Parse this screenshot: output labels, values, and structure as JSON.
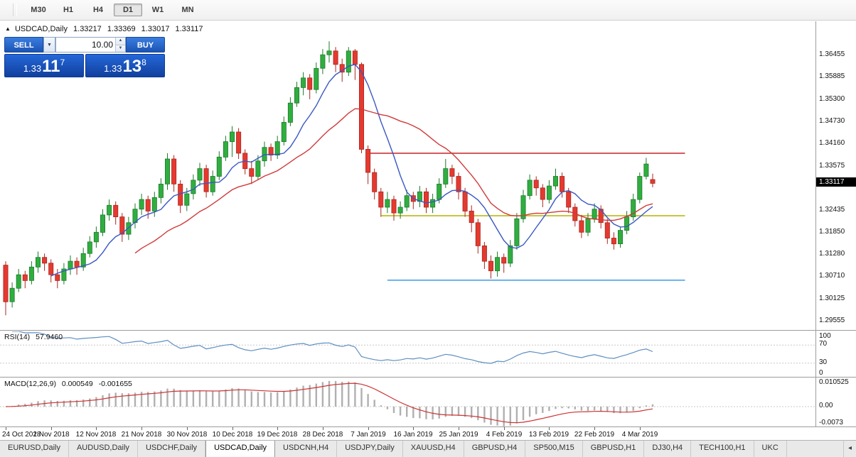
{
  "icons": {
    "collapse": "▲",
    "chevron_down": "▼",
    "spin_up": "▲",
    "spin_down": "▼",
    "tab_scroll_left": "◂"
  },
  "toolbar": {
    "timeframes": [
      {
        "label": "M30",
        "active": false
      },
      {
        "label": "H1",
        "active": false
      },
      {
        "label": "H4",
        "active": false
      },
      {
        "label": "D1",
        "active": true
      },
      {
        "label": "W1",
        "active": false
      },
      {
        "label": "MN",
        "active": false
      }
    ]
  },
  "header": {
    "title": "USDCAD,Daily",
    "open": "1.33217",
    "high": "1.33369",
    "low": "1.33017",
    "close": "1.33117"
  },
  "one_click": {
    "sell_label": "SELL",
    "buy_label": "BUY",
    "volume": "10.00",
    "sell_price": {
      "base": "1.33",
      "pips": "11",
      "pt": "7"
    },
    "buy_price": {
      "base": "1.33",
      "pips": "13",
      "pt": "8"
    }
  },
  "price_scale": {
    "labels": [
      "1.36455",
      "1.35885",
      "1.35300",
      "1.34730",
      "1.34160",
      "1.33575",
      "1.32435",
      "1.31850",
      "1.31280",
      "1.30710",
      "1.30125",
      "1.29555"
    ],
    "badge": "1.33117"
  },
  "rsi": {
    "name": "RSI(14)",
    "value": "57.9460",
    "scale": [
      "100",
      "70",
      "30",
      "0"
    ],
    "levels": [
      70,
      30
    ]
  },
  "macd": {
    "name": "MACD(12,26,9)",
    "value": "0.000549",
    "signal_value": "-0.001655",
    "scale": [
      "0.010525",
      "0.00",
      "-0.0073"
    ]
  },
  "x_axis": {
    "dates": [
      "24 Oct 2018",
      "2 Nov 2018",
      "12 Nov 2018",
      "21 Nov 2018",
      "30 Nov 2018",
      "10 Dec 2018",
      "19 Dec 2018",
      "28 Dec 2018",
      "7 Jan 2019",
      "16 Jan 2019",
      "25 Jan 2019",
      "4 Feb 2019",
      "13 Feb 2019",
      "22 Feb 2019",
      "4 Mar 2019"
    ]
  },
  "tabs": {
    "items": [
      {
        "label": "EURUSD,Daily",
        "active": false
      },
      {
        "label": "AUDUSD,Daily",
        "active": false
      },
      {
        "label": "USDCHF,Daily",
        "active": false
      },
      {
        "label": "USDCAD,Daily",
        "active": true
      },
      {
        "label": "USDCNH,H4",
        "active": false
      },
      {
        "label": "USDJPY,Daily",
        "active": false
      },
      {
        "label": "XAUUSD,H4",
        "active": false
      },
      {
        "label": "GBPUSD,H4",
        "active": false
      },
      {
        "label": "SP500,M15",
        "active": false
      },
      {
        "label": "GBPUSD,H1",
        "active": false
      },
      {
        "label": "DJ30,H4",
        "active": false
      },
      {
        "label": "TECH100,H1",
        "active": false
      },
      {
        "label": "UKC",
        "active": false
      }
    ]
  },
  "colors": {
    "bull": "#2fae3f",
    "bull_edge": "#1d7a2a",
    "bear": "#e5392f",
    "bear_edge": "#a8271f",
    "ma_fast": "#3a57c4",
    "ma_slow": "#d03a3a",
    "rsi": "#5e8fc0",
    "level_dash": "#c8c8c8",
    "macd_hist": "#b0b0b0",
    "macd_signal": "#cc3333",
    "hline_red": "#cc3333",
    "hline_olive": "#b3b300",
    "hline_blue": "#4aa3e8",
    "accent_blue": "#1b54b4",
    "badge_bg": "#000000"
  },
  "chart_data": {
    "type": "candlestick",
    "symbol": "USDCAD",
    "timeframe": "Daily",
    "price_range": [
      1.293,
      1.373
    ],
    "ma": [
      {
        "period": 8,
        "colorKey": "ma_fast"
      },
      {
        "period": 21,
        "colorKey": "ma_slow"
      }
    ],
    "rsi_period": 14,
    "macd_params": [
      12,
      26,
      9
    ],
    "hlines": [
      {
        "price": 1.339,
        "i1": 56,
        "i2": 105,
        "colorKey": "hline_red"
      },
      {
        "price": 1.3228,
        "i1": 58,
        "i2": 105,
        "colorKey": "hline_olive"
      },
      {
        "price": 1.3061,
        "i1": 59,
        "i2": 105,
        "colorKey": "hline_blue"
      }
    ],
    "candles": [
      [
        1.31,
        1.311,
        1.297,
        1.3005
      ],
      [
        1.3005,
        1.3055,
        1.299,
        1.304
      ],
      [
        1.304,
        1.309,
        1.303,
        1.3075
      ],
      [
        1.3075,
        1.3085,
        1.304,
        1.306
      ],
      [
        1.306,
        1.311,
        1.305,
        1.3095
      ],
      [
        1.3095,
        1.3135,
        1.308,
        1.312
      ],
      [
        1.312,
        1.313,
        1.3085,
        1.3105
      ],
      [
        1.3105,
        1.3115,
        1.3055,
        1.3075
      ],
      [
        1.3075,
        1.309,
        1.304,
        1.306
      ],
      [
        1.306,
        1.3105,
        1.305,
        1.309
      ],
      [
        1.309,
        1.3125,
        1.3075,
        1.311
      ],
      [
        1.311,
        1.312,
        1.3075,
        1.3095
      ],
      [
        1.3095,
        1.3145,
        1.3085,
        1.313
      ],
      [
        1.313,
        1.3175,
        1.312,
        1.316
      ],
      [
        1.316,
        1.32,
        1.3145,
        1.3185
      ],
      [
        1.3185,
        1.3245,
        1.3175,
        1.323
      ],
      [
        1.323,
        1.327,
        1.3215,
        1.3255
      ],
      [
        1.3255,
        1.3265,
        1.3205,
        1.3225
      ],
      [
        1.3225,
        1.3235,
        1.316,
        1.318
      ],
      [
        1.318,
        1.3225,
        1.3165,
        1.321
      ],
      [
        1.321,
        1.326,
        1.3195,
        1.3245
      ],
      [
        1.3245,
        1.3285,
        1.323,
        1.327
      ],
      [
        1.327,
        1.328,
        1.322,
        1.324
      ],
      [
        1.324,
        1.329,
        1.3225,
        1.3275
      ],
      [
        1.3275,
        1.3325,
        1.326,
        1.331
      ],
      [
        1.331,
        1.339,
        1.3295,
        1.3375
      ],
      [
        1.3375,
        1.3385,
        1.329,
        1.331
      ],
      [
        1.331,
        1.332,
        1.3235,
        1.3255
      ],
      [
        1.3255,
        1.33,
        1.324,
        1.3285
      ],
      [
        1.3285,
        1.3335,
        1.327,
        1.332
      ],
      [
        1.332,
        1.3365,
        1.3305,
        1.335
      ],
      [
        1.335,
        1.336,
        1.3275,
        1.329
      ],
      [
        1.329,
        1.3345,
        1.328,
        1.333
      ],
      [
        1.333,
        1.3395,
        1.332,
        1.338
      ],
      [
        1.338,
        1.3435,
        1.337,
        1.342
      ],
      [
        1.342,
        1.346,
        1.338,
        1.3445
      ],
      [
        1.3445,
        1.3455,
        1.3375,
        1.339
      ],
      [
        1.339,
        1.34,
        1.3335,
        1.335
      ],
      [
        1.335,
        1.337,
        1.331,
        1.333
      ],
      [
        1.333,
        1.3385,
        1.332,
        1.337
      ],
      [
        1.337,
        1.342,
        1.3355,
        1.3405
      ],
      [
        1.3405,
        1.3415,
        1.337,
        1.3385
      ],
      [
        1.3385,
        1.3435,
        1.3375,
        1.342
      ],
      [
        1.342,
        1.3485,
        1.341,
        1.347
      ],
      [
        1.347,
        1.3535,
        1.346,
        1.352
      ],
      [
        1.352,
        1.3575,
        1.351,
        1.356
      ],
      [
        1.356,
        1.36,
        1.354,
        1.3585
      ],
      [
        1.3585,
        1.3595,
        1.353,
        1.3555
      ],
      [
        1.3555,
        1.3625,
        1.3545,
        1.361
      ],
      [
        1.361,
        1.366,
        1.3595,
        1.3645
      ],
      [
        1.3645,
        1.368,
        1.3625,
        1.3655
      ],
      [
        1.3655,
        1.3665,
        1.36,
        1.362
      ],
      [
        1.362,
        1.3635,
        1.3575,
        1.36
      ],
      [
        1.36,
        1.3665,
        1.359,
        1.3655
      ],
      [
        1.3655,
        1.366,
        1.358,
        1.362
      ],
      [
        1.362,
        1.3625,
        1.339,
        1.34
      ],
      [
        1.34,
        1.341,
        1.331,
        1.334
      ],
      [
        1.334,
        1.335,
        1.327,
        1.329
      ],
      [
        1.329,
        1.33,
        1.3225,
        1.325
      ],
      [
        1.325,
        1.329,
        1.3235,
        1.327
      ],
      [
        1.327,
        1.328,
        1.3215,
        1.3235
      ],
      [
        1.3235,
        1.3265,
        1.322,
        1.325
      ],
      [
        1.325,
        1.3295,
        1.324,
        1.328
      ],
      [
        1.328,
        1.329,
        1.3245,
        1.3265
      ],
      [
        1.3265,
        1.3305,
        1.325,
        1.329
      ],
      [
        1.329,
        1.33,
        1.3235,
        1.325
      ],
      [
        1.325,
        1.3285,
        1.3235,
        1.327
      ],
      [
        1.327,
        1.3325,
        1.326,
        1.331
      ],
      [
        1.331,
        1.3375,
        1.33,
        1.335
      ],
      [
        1.335,
        1.336,
        1.331,
        1.333
      ],
      [
        1.333,
        1.334,
        1.327,
        1.329
      ],
      [
        1.329,
        1.33,
        1.3225,
        1.324
      ],
      [
        1.324,
        1.3255,
        1.3185,
        1.321
      ],
      [
        1.321,
        1.322,
        1.313,
        1.315
      ],
      [
        1.315,
        1.316,
        1.309,
        1.311
      ],
      [
        1.311,
        1.3125,
        1.3065,
        1.3085
      ],
      [
        1.3085,
        1.3135,
        1.307,
        1.312
      ],
      [
        1.312,
        1.313,
        1.308,
        1.3105
      ],
      [
        1.3105,
        1.3165,
        1.3095,
        1.315
      ],
      [
        1.315,
        1.3235,
        1.314,
        1.322
      ],
      [
        1.322,
        1.3295,
        1.321,
        1.328
      ],
      [
        1.328,
        1.3335,
        1.327,
        1.332
      ],
      [
        1.332,
        1.333,
        1.328,
        1.33
      ],
      [
        1.33,
        1.331,
        1.325,
        1.327
      ],
      [
        1.327,
        1.332,
        1.326,
        1.3305
      ],
      [
        1.3305,
        1.335,
        1.3295,
        1.333
      ],
      [
        1.333,
        1.334,
        1.3275,
        1.329
      ],
      [
        1.329,
        1.33,
        1.3235,
        1.325
      ],
      [
        1.325,
        1.326,
        1.32,
        1.3215
      ],
      [
        1.3215,
        1.323,
        1.317,
        1.3185
      ],
      [
        1.3185,
        1.3235,
        1.3175,
        1.322
      ],
      [
        1.322,
        1.326,
        1.321,
        1.3245
      ],
      [
        1.3245,
        1.3255,
        1.3195,
        1.321
      ],
      [
        1.321,
        1.322,
        1.3155,
        1.317
      ],
      [
        1.317,
        1.3185,
        1.314,
        1.3155
      ],
      [
        1.3155,
        1.32,
        1.3145,
        1.319
      ],
      [
        1.319,
        1.324,
        1.318,
        1.3225
      ],
      [
        1.3225,
        1.3285,
        1.3215,
        1.327
      ],
      [
        1.327,
        1.334,
        1.326,
        1.333
      ],
      [
        1.333,
        1.3378,
        1.3322,
        1.3362
      ],
      [
        1.33217,
        1.33369,
        1.33017,
        1.33117
      ]
    ]
  }
}
